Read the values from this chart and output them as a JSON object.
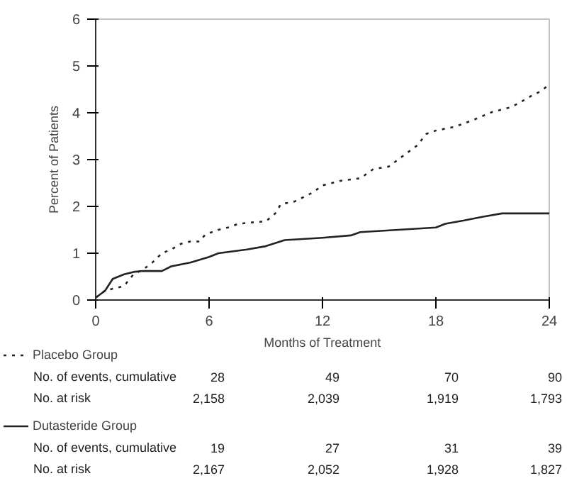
{
  "chart_data": {
    "type": "line",
    "xlabel": "Months of Treatment",
    "ylabel": "Percent of Patients",
    "xlim": [
      0,
      24
    ],
    "xticks": [
      0,
      6,
      12,
      18,
      24
    ],
    "ylim": [
      0,
      6
    ],
    "yticks": [
      0,
      1,
      2,
      3,
      4,
      5,
      6
    ],
    "grid": false,
    "legend": "bottom",
    "series": [
      {
        "name": "Placebo Group",
        "color": "#222222",
        "line_style": "dotted",
        "x": [
          0,
          0.5,
          1,
          1.5,
          2,
          2.5,
          3,
          3.5,
          4,
          4.5,
          5,
          5.5,
          5.8,
          6.5,
          7,
          7.5,
          8,
          9,
          9.5,
          9.8,
          10.5,
          11,
          11.5,
          12,
          13,
          14,
          14.7,
          15.5,
          16,
          16.5,
          17,
          17.5,
          18,
          19,
          20,
          21,
          22,
          23,
          23.5,
          24
        ],
        "values": [
          0.05,
          0.2,
          0.25,
          0.3,
          0.55,
          0.65,
          0.8,
          1.0,
          1.08,
          1.2,
          1.25,
          1.25,
          1.4,
          1.5,
          1.55,
          1.62,
          1.65,
          1.68,
          1.85,
          2.05,
          2.1,
          2.2,
          2.3,
          2.45,
          2.55,
          2.6,
          2.8,
          2.85,
          3.0,
          3.15,
          3.3,
          3.55,
          3.62,
          3.7,
          3.85,
          4.02,
          4.12,
          4.35,
          4.45,
          4.6
        ]
      },
      {
        "name": "Dutasteride Group",
        "color": "#222222",
        "line_style": "solid",
        "x": [
          0,
          0.5,
          0.9,
          1.5,
          2,
          2.5,
          3,
          3.5,
          4,
          5,
          6,
          6.5,
          8,
          9,
          10,
          12,
          13.5,
          14,
          16,
          18,
          18.5,
          19.5,
          20.5,
          21.5,
          24
        ],
        "values": [
          0.05,
          0.2,
          0.45,
          0.55,
          0.6,
          0.62,
          0.62,
          0.62,
          0.72,
          0.8,
          0.92,
          1.0,
          1.08,
          1.15,
          1.28,
          1.33,
          1.38,
          1.45,
          1.5,
          1.55,
          1.63,
          1.7,
          1.78,
          1.85,
          1.85
        ]
      }
    ],
    "annotations": [
      "No. of events, cumulative",
      "28",
      "49",
      "70",
      "90",
      "No. at risk",
      "2,158",
      "2,039",
      "1,919",
      "1,793",
      "No. of events, cumulative",
      "19",
      "27",
      "31",
      "39",
      "No. at risk",
      "2,167",
      "2,052",
      "1,928",
      "1,827"
    ]
  }
}
